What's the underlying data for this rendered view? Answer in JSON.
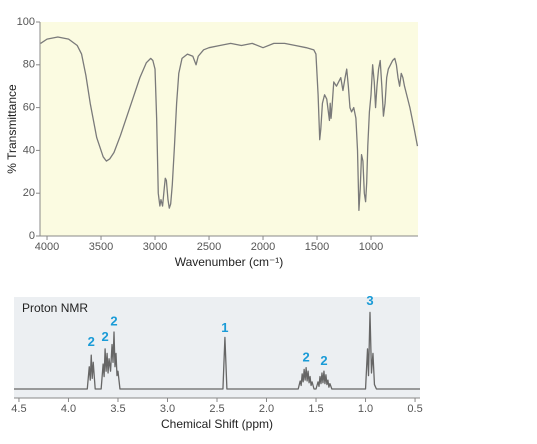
{
  "chart_data": [
    {
      "type": "line",
      "x_label": "Wavenumber (cm⁻¹)",
      "y_label": "% Transmittance",
      "background": "#fbfbe1",
      "color": "#7a7a7a",
      "xlim": [
        4065,
        565
      ],
      "ylim": [
        0,
        100
      ],
      "xticks": [
        4000,
        3500,
        3000,
        2500,
        2000,
        1500,
        1000
      ],
      "yticks": [
        0,
        20,
        40,
        60,
        80,
        100
      ],
      "x": [
        4060,
        4000,
        3900,
        3800,
        3720,
        3680,
        3640,
        3600,
        3540,
        3480,
        3450,
        3420,
        3380,
        3320,
        3260,
        3200,
        3140,
        3080,
        3040,
        3020,
        3000,
        2985,
        2970,
        2955,
        2945,
        2930,
        2915,
        2905,
        2895,
        2880,
        2868,
        2855,
        2840,
        2820,
        2800,
        2780,
        2750,
        2700,
        2650,
        2620,
        2600,
        2550,
        2500,
        2400,
        2300,
        2200,
        2100,
        2000,
        1900,
        1800,
        1700,
        1600,
        1530,
        1510,
        1490,
        1475,
        1465,
        1450,
        1430,
        1410,
        1395,
        1385,
        1378,
        1370,
        1360,
        1345,
        1320,
        1300,
        1280,
        1260,
        1240,
        1225,
        1210,
        1195,
        1180,
        1160,
        1140,
        1125,
        1112,
        1100,
        1088,
        1075,
        1062,
        1050,
        1040,
        1030,
        1015,
        1000,
        985,
        970,
        958,
        945,
        930,
        915,
        900,
        885,
        870,
        855,
        840,
        820,
        800,
        780,
        765,
        750,
        735,
        720,
        705,
        690,
        670,
        640,
        600,
        570
      ],
      "values": [
        90,
        92,
        93,
        92,
        89,
        85,
        75,
        62,
        46,
        37,
        35,
        36,
        39,
        47,
        56,
        65,
        74,
        81,
        83,
        82,
        78,
        55,
        20,
        14,
        17,
        14,
        22,
        27,
        26,
        17,
        13,
        15,
        24,
        42,
        62,
        76,
        83,
        85,
        84,
        80,
        84,
        87,
        88,
        89,
        90,
        89,
        90,
        88,
        90,
        90,
        89,
        88,
        87,
        85,
        66,
        45,
        50,
        62,
        66,
        64,
        58,
        54,
        62,
        55,
        61,
        72,
        70,
        72,
        74,
        68,
        74,
        78,
        70,
        60,
        58,
        60,
        55,
        40,
        12,
        22,
        38,
        35,
        20,
        16,
        25,
        42,
        58,
        66,
        80,
        72,
        60,
        70,
        78,
        82,
        70,
        56,
        62,
        74,
        78,
        80,
        82,
        83,
        80,
        74,
        70,
        76,
        74,
        70,
        66,
        60,
        50,
        42
      ]
    },
    {
      "type": "line",
      "title": "Proton NMR",
      "x_label": "Chemical Shift (ppm)",
      "background": "#eceff2",
      "color": "#666666",
      "xlim": [
        4.55,
        0.45
      ],
      "ylim": [
        0,
        100
      ],
      "xticks": [
        4.5,
        {
          "value": 4.0,
          "label": "4.0"
        },
        3.5,
        {
          "value": 3.0,
          "label": "3.0"
        },
        2.5,
        {
          "value": 2.0,
          "label": "2.0"
        },
        1.5,
        {
          "value": 1.0,
          "label": "1.0"
        },
        0.5
      ],
      "x": [
        4.55,
        3.81,
        3.79,
        3.78,
        3.77,
        3.76,
        3.75,
        3.73,
        3.67,
        3.65,
        3.64,
        3.63,
        3.62,
        3.61,
        3.6,
        3.59,
        3.575,
        3.56,
        3.55,
        3.54,
        3.53,
        3.52,
        3.51,
        3.5,
        3.48,
        2.44,
        2.42,
        2.4,
        1.68,
        1.66,
        1.65,
        1.64,
        1.63,
        1.62,
        1.61,
        1.6,
        1.59,
        1.58,
        1.57,
        1.56,
        1.55,
        1.54,
        1.52,
        1.5,
        1.48,
        1.47,
        1.46,
        1.45,
        1.44,
        1.43,
        1.42,
        1.41,
        1.4,
        1.39,
        1.38,
        1.37,
        1.36,
        1.34,
        1.0,
        0.98,
        0.97,
        0.955,
        0.94,
        0.925,
        0.91,
        0.89,
        0.45
      ],
      "values": [
        0,
        0,
        25,
        10,
        38,
        12,
        30,
        0,
        0,
        28,
        14,
        45,
        20,
        40,
        18,
        34,
        20,
        50,
        30,
        64,
        25,
        40,
        15,
        20,
        0,
        0,
        58,
        0,
        0,
        9,
        4,
        17,
        8,
        22,
        10,
        24,
        9,
        20,
        7,
        14,
        4,
        8,
        0,
        0,
        8,
        3,
        14,
        6,
        18,
        7,
        20,
        6,
        16,
        5,
        10,
        2,
        6,
        0,
        0,
        45,
        15,
        86,
        18,
        40,
        5,
        0,
        0
      ],
      "annotations": [
        {
          "text": "2",
          "x": 3.77,
          "y": 52
        },
        {
          "text": "2",
          "x": 3.63,
          "y": 58
        },
        {
          "text": "2",
          "x": 3.54,
          "y": 75
        },
        {
          "text": "1",
          "x": 2.42,
          "y": 68
        },
        {
          "text": "2",
          "x": 1.6,
          "y": 35
        },
        {
          "text": "2",
          "x": 1.42,
          "y": 31
        },
        {
          "text": "3",
          "x": 0.955,
          "y": 98
        }
      ]
    }
  ]
}
